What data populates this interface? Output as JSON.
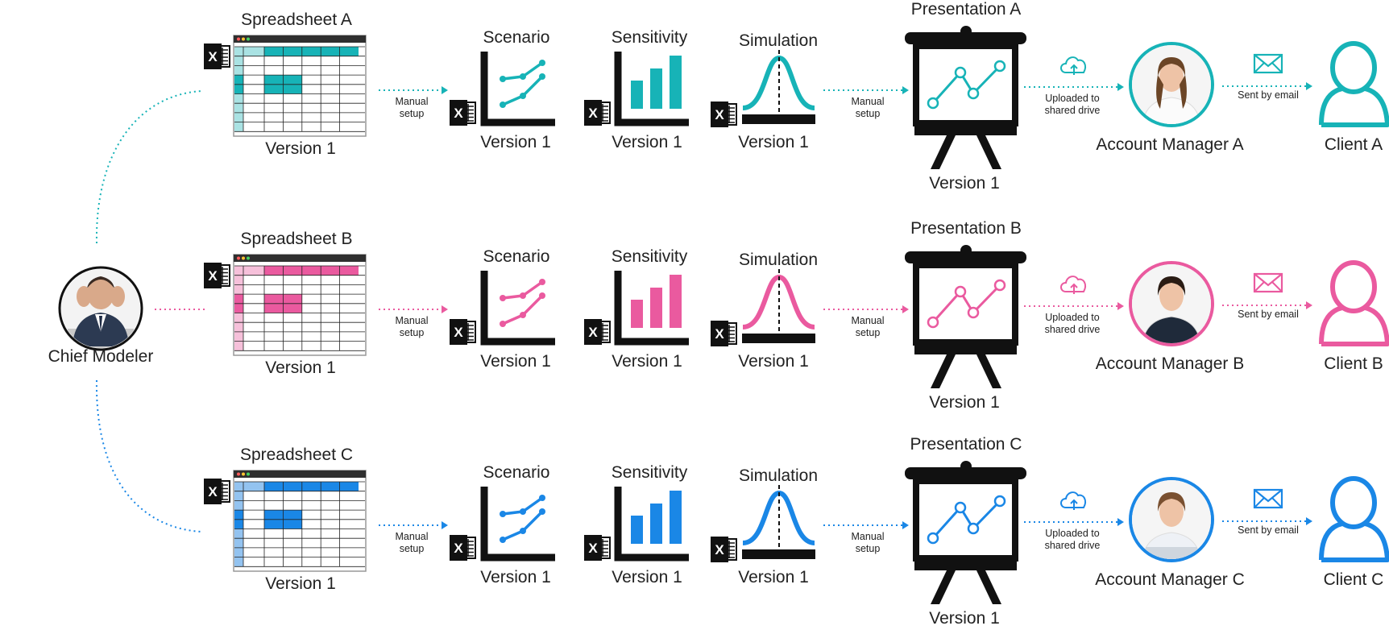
{
  "chief": {
    "label": "Chief Modeler"
  },
  "flow_labels": {
    "manual_setup": [
      "Manual",
      "setup"
    ],
    "uploaded": [
      "Uploaded to",
      "shared drive"
    ],
    "sent": "Sent by email"
  },
  "icons": {
    "excel": "excel-x-icon",
    "upload": "cloud-upload-icon",
    "email": "envelope-icon",
    "client": "person-outline-icon",
    "presentation": "easel-chart-icon"
  },
  "rows": [
    {
      "key": "a",
      "color": "#17b3b7",
      "light": "#a9e2e3",
      "spreadsheet": {
        "title": "Spreadsheet A",
        "version": "Version 1"
      },
      "scenario": {
        "title": "Scenario",
        "version": "Version 1"
      },
      "sensitivity": {
        "title": "Sensitivity",
        "version": "Version 1"
      },
      "simulation": {
        "title": "Simulation",
        "version": "Version 1"
      },
      "presentation": {
        "title": "Presentation A",
        "version": "Version 1"
      },
      "manager": {
        "label": "Account Manager A"
      },
      "client": {
        "label": "Client A"
      }
    },
    {
      "key": "b",
      "color": "#ea5a9f",
      "light": "#f6c0da",
      "spreadsheet": {
        "title": "Spreadsheet B",
        "version": "Version 1"
      },
      "scenario": {
        "title": "Scenario",
        "version": "Version 1"
      },
      "sensitivity": {
        "title": "Sensitivity",
        "version": "Version 1"
      },
      "simulation": {
        "title": "Simulation",
        "version": "Version 1"
      },
      "presentation": {
        "title": "Presentation B",
        "version": "Version 1"
      },
      "manager": {
        "label": "Account Manager B"
      },
      "client": {
        "label": "Client B"
      }
    },
    {
      "key": "c",
      "color": "#1a87e6",
      "light": "#93c3f0",
      "spreadsheet": {
        "title": "Spreadsheet C",
        "version": "Version 1"
      },
      "scenario": {
        "title": "Scenario",
        "version": "Version 1"
      },
      "sensitivity": {
        "title": "Sensitivity",
        "version": "Version 1"
      },
      "simulation": {
        "title": "Simulation",
        "version": "Version 1"
      },
      "presentation": {
        "title": "Presentation C",
        "version": "Version 1"
      },
      "manager": {
        "label": "Account Manager C"
      },
      "client": {
        "label": "Client C"
      }
    }
  ]
}
